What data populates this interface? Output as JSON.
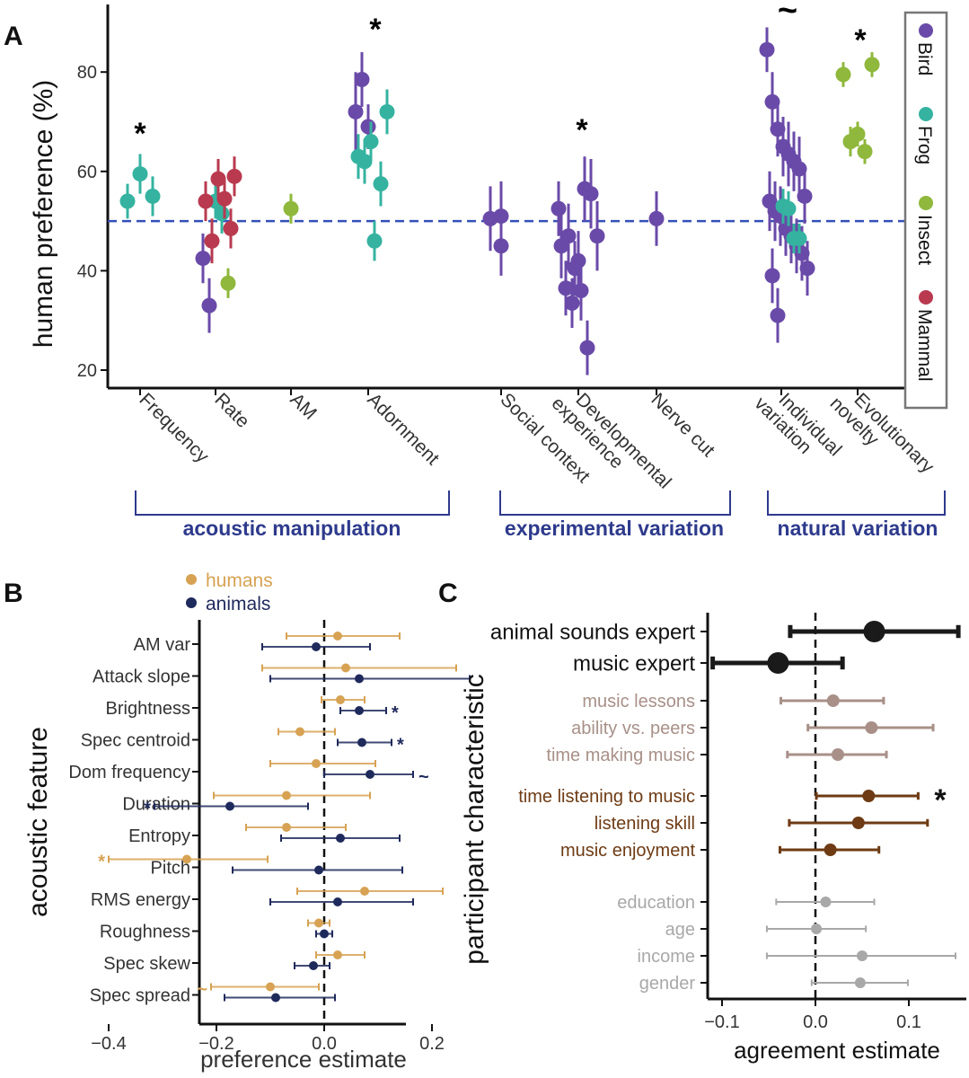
{
  "colors": {
    "bird": "#6a4aa8",
    "frog": "#35b3a0",
    "insect": "#8fb83c",
    "mammal": "#b93a4f",
    "humans": "#d7a253",
    "animals": "#1f2a5c",
    "bracket": "#2d3a8c",
    "expert": "#1a1a1a",
    "music_ability": "#a89088",
    "music_listening": "#6e3b14",
    "demographic": "#a8a8a8"
  },
  "panel_a": {
    "label": "A",
    "ylabel": "human preference (%)",
    "legend": [
      "Bird",
      "Frog",
      "Insect",
      "Mammal"
    ],
    "groups": [
      "acoustic manipulation",
      "experimental variation",
      "natural variation"
    ],
    "categories": [
      "Frequency",
      "Rate",
      "AM",
      "Adornment",
      "Social context",
      "Developmental experience",
      "Nerve cut",
      "Individual variation",
      "Evolutionary novelty"
    ],
    "category_lines": [
      [
        "Frequency"
      ],
      [
        "Rate"
      ],
      [
        "AM"
      ],
      [
        "Adornment"
      ],
      [
        "Social context"
      ],
      [
        "Developmental",
        "experience"
      ],
      [
        "Nerve cut"
      ],
      [
        "Individual",
        "variation"
      ],
      [
        "Evolutionary",
        "novelty"
      ]
    ],
    "significance": [
      "*",
      "*",
      "*",
      "~",
      "*"
    ]
  },
  "panel_b": {
    "label": "B",
    "legend": [
      "humans",
      "animals"
    ],
    "ylabel": "acoustic feature",
    "xlabel": "preference estimate",
    "features": [
      "AM var",
      "Attack slope",
      "Brightness",
      "Spec centroid",
      "Dom frequency",
      "Duration",
      "Entropy",
      "Pitch",
      "RMS energy",
      "Roughness",
      "Spec skew",
      "Spec spread"
    ],
    "significance": [
      "*",
      "*",
      "~",
      "*",
      "*",
      "~"
    ]
  },
  "panel_c": {
    "label": "C",
    "ylabel": "participant characteristic",
    "xlabel": "agreement estimate",
    "characteristics": [
      "animal sounds expert",
      "music expert",
      "music lessons",
      "ability vs. peers",
      "time making music",
      "time listening to music",
      "listening skill",
      "music enjoyment",
      "education",
      "age",
      "income",
      "gender"
    ],
    "significance": [
      "*"
    ]
  },
  "chart_data": [
    {
      "type": "scatter",
      "title": "Panel A",
      "xlabel": "",
      "ylabel": "human preference (%)",
      "ylim": [
        15,
        95
      ],
      "yticks": [
        20,
        40,
        60,
        80
      ],
      "reference_line": 50,
      "categories": [
        "Frequency",
        "Rate",
        "AM",
        "Adornment",
        "Social context",
        "Developmental experience",
        "Nerve cut",
        "Individual variation",
        "Evolutionary novelty"
      ],
      "series": [
        {
          "name": "Bird",
          "points": [
            {
              "category": "Rate",
              "y": 42.5,
              "lo": 37.5,
              "hi": 47.5
            },
            {
              "category": "Rate",
              "y": 33.0,
              "lo": 27.5,
              "hi": 38.5
            },
            {
              "category": "Adornment",
              "y": 72.0,
              "lo": 64.0,
              "hi": 80.0
            },
            {
              "category": "Adornment",
              "y": 78.5,
              "lo": 73.0,
              "hi": 84.0
            },
            {
              "category": "Adornment",
              "y": 69.0,
              "lo": 64.5,
              "hi": 73.5
            },
            {
              "category": "Social context",
              "y": 50.5,
              "lo": 44.0,
              "hi": 57.0
            },
            {
              "category": "Social context",
              "y": 45.0,
              "lo": 39.0,
              "hi": 51.0
            },
            {
              "category": "Social context",
              "y": 51.0,
              "lo": 44.0,
              "hi": 58.0
            },
            {
              "category": "Developmental experience",
              "y": 52.5,
              "lo": 47.0,
              "hi": 58.0
            },
            {
              "category": "Developmental experience",
              "y": 36.5,
              "lo": 31.0,
              "hi": 42.0
            },
            {
              "category": "Developmental experience",
              "y": 33.5,
              "lo": 28.5,
              "hi": 38.5
            },
            {
              "category": "Developmental experience",
              "y": 42.0,
              "lo": 36.0,
              "hi": 48.0
            },
            {
              "category": "Developmental experience",
              "y": 56.5,
              "lo": 50.0,
              "hi": 63.0
            },
            {
              "category": "Developmental experience",
              "y": 55.5,
              "lo": 48.5,
              "hi": 62.5
            },
            {
              "category": "Developmental experience",
              "y": 47.0,
              "lo": 40.0,
              "hi": 54.0
            },
            {
              "category": "Developmental experience",
              "y": 45.0,
              "lo": 38.5,
              "hi": 51.5
            },
            {
              "category": "Developmental experience",
              "y": 47.0,
              "lo": 40.5,
              "hi": 53.5
            },
            {
              "category": "Developmental experience",
              "y": 40.5,
              "lo": 35.0,
              "hi": 46.0
            },
            {
              "category": "Developmental experience",
              "y": 36.0,
              "lo": 30.0,
              "hi": 42.0
            },
            {
              "category": "Developmental experience",
              "y": 24.5,
              "lo": 19.0,
              "hi": 30.0
            },
            {
              "category": "Nerve cut",
              "y": 50.5,
              "lo": 45.0,
              "hi": 56.0
            },
            {
              "category": "Individual variation",
              "y": 84.5,
              "lo": 80.0,
              "hi": 89.0
            },
            {
              "category": "Individual variation",
              "y": 74.0,
              "lo": 68.0,
              "hi": 80.0
            },
            {
              "category": "Individual variation",
              "y": 68.5,
              "lo": 63.0,
              "hi": 74.0
            },
            {
              "category": "Individual variation",
              "y": 65.0,
              "lo": 59.0,
              "hi": 71.0
            },
            {
              "category": "Individual variation",
              "y": 63.5,
              "lo": 57.0,
              "hi": 70.0
            },
            {
              "category": "Individual variation",
              "y": 62.0,
              "lo": 56.0,
              "hi": 68.0
            },
            {
              "category": "Individual variation",
              "y": 60.5,
              "lo": 54.0,
              "hi": 67.0
            },
            {
              "category": "Individual variation",
              "y": 55.0,
              "lo": 49.5,
              "hi": 60.5
            },
            {
              "category": "Individual variation",
              "y": 54.0,
              "lo": 48.0,
              "hi": 60.0
            },
            {
              "category": "Individual variation",
              "y": 52.0,
              "lo": 46.0,
              "hi": 58.0
            },
            {
              "category": "Individual variation",
              "y": 51.0,
              "lo": 45.0,
              "hi": 57.0
            },
            {
              "category": "Individual variation",
              "y": 48.5,
              "lo": 43.0,
              "hi": 54.0
            },
            {
              "category": "Individual variation",
              "y": 47.0,
              "lo": 41.5,
              "hi": 52.5
            },
            {
              "category": "Individual variation",
              "y": 45.0,
              "lo": 39.5,
              "hi": 50.5
            },
            {
              "category": "Individual variation",
              "y": 43.5,
              "lo": 38.0,
              "hi": 49.0
            },
            {
              "category": "Individual variation",
              "y": 40.5,
              "lo": 35.0,
              "hi": 46.0
            },
            {
              "category": "Individual variation",
              "y": 39.0,
              "lo": 33.5,
              "hi": 44.5
            },
            {
              "category": "Individual variation",
              "y": 31.0,
              "lo": 25.5,
              "hi": 36.5
            }
          ]
        },
        {
          "name": "Frog",
          "points": [
            {
              "category": "Frequency",
              "y": 54.0,
              "lo": 50.5,
              "hi": 57.5
            },
            {
              "category": "Frequency",
              "y": 59.5,
              "lo": 55.5,
              "hi": 63.5
            },
            {
              "category": "Frequency",
              "y": 55.0,
              "lo": 51.0,
              "hi": 59.0
            },
            {
              "category": "Rate",
              "y": 54.0,
              "lo": 50.5,
              "hi": 57.5
            },
            {
              "category": "Rate",
              "y": 51.5,
              "lo": 47.5,
              "hi": 55.5
            },
            {
              "category": "Adornment",
              "y": 46.0,
              "lo": 42.0,
              "hi": 50.0
            },
            {
              "category": "Adornment",
              "y": 57.5,
              "lo": 53.0,
              "hi": 62.0
            },
            {
              "category": "Adornment",
              "y": 72.0,
              "lo": 67.5,
              "hi": 76.5
            },
            {
              "category": "Adornment",
              "y": 63.0,
              "lo": 58.5,
              "hi": 67.5
            },
            {
              "category": "Adornment",
              "y": 62.0,
              "lo": 57.5,
              "hi": 66.5
            },
            {
              "category": "Adornment",
              "y": 66.0,
              "lo": 62.0,
              "hi": 70.0
            },
            {
              "category": "Individual variation",
              "y": 53.0,
              "lo": 49.5,
              "hi": 56.5
            },
            {
              "category": "Individual variation",
              "y": 52.5,
              "lo": 49.0,
              "hi": 56.0
            },
            {
              "category": "Individual variation",
              "y": 46.5,
              "lo": 43.5,
              "hi": 49.5
            },
            {
              "category": "Individual variation",
              "y": 46.5,
              "lo": 43.5,
              "hi": 49.5
            }
          ]
        },
        {
          "name": "Insect",
          "points": [
            {
              "category": "Rate",
              "y": 37.5,
              "lo": 34.5,
              "hi": 40.5
            },
            {
              "category": "AM",
              "y": 52.5,
              "lo": 49.5,
              "hi": 55.5
            },
            {
              "category": "Evolutionary novelty",
              "y": 79.5,
              "lo": 77.0,
              "hi": 82.0
            },
            {
              "category": "Evolutionary novelty",
              "y": 66.0,
              "lo": 63.0,
              "hi": 69.0
            },
            {
              "category": "Evolutionary novelty",
              "y": 67.5,
              "lo": 65.0,
              "hi": 70.0
            },
            {
              "category": "Evolutionary novelty",
              "y": 64.0,
              "lo": 61.5,
              "hi": 66.5
            },
            {
              "category": "Evolutionary novelty",
              "y": 81.5,
              "lo": 79.0,
              "hi": 84.0
            }
          ]
        },
        {
          "name": "Mammal",
          "points": [
            {
              "category": "Rate",
              "y": 59.0,
              "lo": 55.0,
              "hi": 63.0
            },
            {
              "category": "Rate",
              "y": 54.0,
              "lo": 50.0,
              "hi": 58.0
            },
            {
              "category": "Rate",
              "y": 46.0,
              "lo": 41.5,
              "hi": 50.5
            },
            {
              "category": "Rate",
              "y": 58.5,
              "lo": 54.5,
              "hi": 62.5
            },
            {
              "category": "Rate",
              "y": 54.5,
              "lo": 50.5,
              "hi": 58.5
            },
            {
              "category": "Rate",
              "y": 48.5,
              "lo": 44.5,
              "hi": 52.5
            }
          ]
        }
      ]
    },
    {
      "type": "scatter",
      "title": "Panel B",
      "xlabel": "preference estimate",
      "ylabel": "acoustic feature",
      "xlim": [
        -0.47,
        0.3
      ],
      "xticks": [
        -0.4,
        -0.2,
        0.0,
        0.2
      ],
      "categories": [
        "AM var",
        "Attack slope",
        "Brightness",
        "Spec centroid",
        "Dom frequency",
        "Duration",
        "Entropy",
        "Pitch",
        "RMS energy",
        "Roughness",
        "Spec skew",
        "Spec spread"
      ],
      "series": [
        {
          "name": "humans",
          "values": [
            0.025,
            0.04,
            0.03,
            -0.045,
            -0.015,
            -0.07,
            -0.07,
            -0.255,
            0.075,
            -0.01,
            0.025,
            -0.1
          ],
          "lo": [
            -0.07,
            -0.115,
            -0.005,
            -0.085,
            -0.1,
            -0.205,
            -0.145,
            -0.4,
            -0.05,
            -0.03,
            -0.015,
            -0.21
          ],
          "hi": [
            0.14,
            0.245,
            0.075,
            0.02,
            0.095,
            0.085,
            0.04,
            -0.105,
            0.22,
            0.01,
            0.075,
            -0.01
          ]
        },
        {
          "name": "animals",
          "values": [
            -0.015,
            0.065,
            0.065,
            0.07,
            0.085,
            -0.175,
            0.03,
            -0.01,
            0.025,
            0.0,
            -0.02,
            -0.09
          ],
          "lo": [
            -0.115,
            -0.1,
            0.03,
            0.025,
            0.0,
            -0.315,
            -0.08,
            -0.17,
            -0.1,
            -0.015,
            -0.055,
            -0.185
          ],
          "hi": [
            0.085,
            0.27,
            0.115,
            0.125,
            0.165,
            -0.03,
            0.14,
            0.145,
            0.165,
            0.015,
            0.01,
            0.02
          ]
        }
      ],
      "annotations": [
        {
          "feature": "Brightness",
          "series": "animals",
          "text": "*"
        },
        {
          "feature": "Spec centroid",
          "series": "animals",
          "text": "*"
        },
        {
          "feature": "Dom frequency",
          "series": "animals",
          "text": "~"
        },
        {
          "feature": "Duration",
          "series": "animals",
          "text": "*"
        },
        {
          "feature": "Pitch",
          "series": "humans",
          "text": "*"
        },
        {
          "feature": "Spec spread",
          "series": "humans",
          "text": "~"
        }
      ]
    },
    {
      "type": "scatter",
      "title": "Panel C",
      "xlabel": "agreement estimate",
      "ylabel": "participant characteristic",
      "xlim": [
        -0.122,
        0.155
      ],
      "xticks": [
        -0.1,
        0.0,
        0.1
      ],
      "tick_labels": [
        "−0.1",
        "0.0",
        "0.1"
      ],
      "categories": [
        "animal sounds expert",
        "music expert",
        "music lessons",
        "ability vs. peers",
        "time making music",
        "time listening to music",
        "listening skill",
        "music enjoyment",
        "education",
        "age",
        "income",
        "gender"
      ],
      "groups": [
        "expert",
        "expert",
        "music_ability",
        "music_ability",
        "music_ability",
        "music_listening",
        "music_listening",
        "music_listening",
        "demographic",
        "demographic",
        "demographic",
        "demographic"
      ],
      "values": [
        0.063,
        -0.04,
        0.019,
        0.06,
        0.024,
        0.057,
        0.046,
        0.016,
        0.011,
        0.001,
        0.05,
        0.048
      ],
      "lo": [
        -0.027,
        -0.11,
        -0.037,
        -0.008,
        -0.03,
        0.001,
        -0.028,
        -0.038,
        -0.042,
        -0.052,
        -0.052,
        -0.004
      ],
      "hi": [
        0.153,
        0.029,
        0.073,
        0.126,
        0.076,
        0.11,
        0.12,
        0.068,
        0.063,
        0.054,
        0.15,
        0.099
      ],
      "annotations": [
        {
          "category": "time listening to music",
          "text": "*"
        }
      ]
    }
  ]
}
